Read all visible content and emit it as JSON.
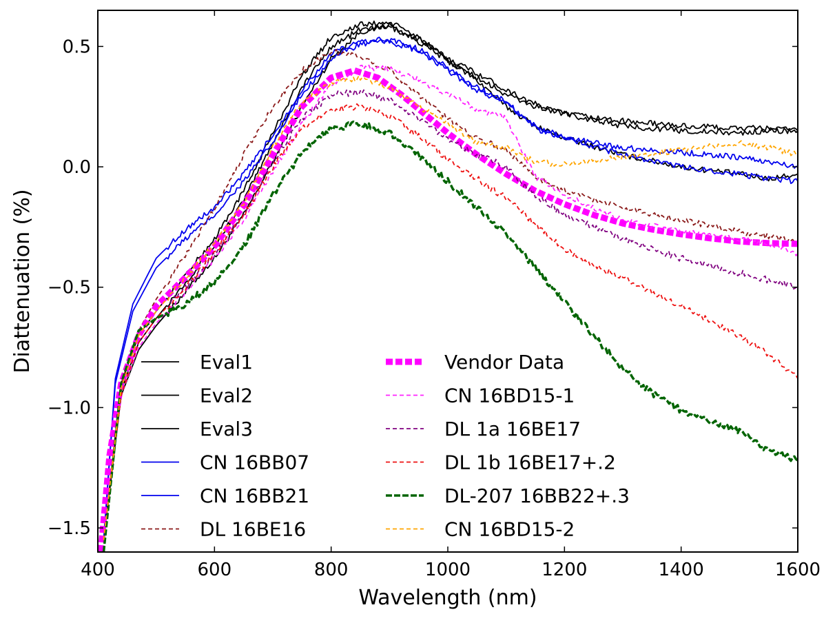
{
  "chart_data": {
    "type": "line",
    "title": "",
    "xlabel": "Wavelength (nm)",
    "ylabel": "Diattenuation (%)",
    "xlim": [
      400,
      1600
    ],
    "ylim": [
      -1.6,
      0.65
    ],
    "x_ticks": [
      400,
      600,
      800,
      1000,
      1200,
      1400,
      1600
    ],
    "x_tick_labels": [
      "400",
      "600",
      "800",
      "1000",
      "1200",
      "1400",
      "1600"
    ],
    "y_ticks": [
      -1.5,
      -1.0,
      -0.5,
      0.0,
      0.5
    ],
    "y_tick_labels": [
      "−1.5",
      "−1.0",
      "−0.5",
      "0.0",
      "0.5"
    ],
    "grid": false,
    "legend_position": "lower-center",
    "series": [
      {
        "name": "Eval1",
        "color": "#000000",
        "dash": "solid",
        "width": 1.8,
        "noise": 0.012,
        "x": [
          410,
          440,
          470,
          500,
          550,
          600,
          650,
          700,
          750,
          800,
          850,
          900,
          950,
          1000,
          1050,
          1100,
          1150,
          1200,
          1300,
          1400,
          1500,
          1550,
          1600
        ],
        "y": [
          -1.55,
          -0.95,
          -0.76,
          -0.66,
          -0.52,
          -0.38,
          -0.2,
          0.02,
          0.25,
          0.45,
          0.56,
          0.59,
          0.52,
          0.44,
          0.36,
          0.25,
          0.17,
          0.12,
          0.05,
          0.0,
          -0.03,
          -0.05,
          -0.03
        ]
      },
      {
        "name": "Eval2",
        "color": "#000000",
        "dash": "solid",
        "width": 1.8,
        "noise": 0.012,
        "x": [
          410,
          440,
          470,
          500,
          550,
          600,
          650,
          700,
          750,
          800,
          850,
          900,
          950,
          1000,
          1050,
          1100,
          1150,
          1200,
          1300,
          1400,
          1500,
          1550,
          1600
        ],
        "y": [
          -1.55,
          -0.93,
          -0.73,
          -0.63,
          -0.48,
          -0.33,
          -0.14,
          0.1,
          0.33,
          0.5,
          0.57,
          0.58,
          0.53,
          0.45,
          0.39,
          0.32,
          0.26,
          0.22,
          0.17,
          0.15,
          0.14,
          0.15,
          0.15
        ]
      },
      {
        "name": "Eval3",
        "color": "#000000",
        "dash": "solid",
        "width": 1.8,
        "noise": 0.012,
        "x": [
          410,
          440,
          470,
          500,
          550,
          600,
          650,
          700,
          750,
          800,
          850,
          900,
          950,
          1000,
          1050,
          1100,
          1150,
          1200,
          1300,
          1400,
          1500,
          1550,
          1600
        ],
        "y": [
          -1.55,
          -0.9,
          -0.7,
          -0.6,
          -0.45,
          -0.3,
          -0.1,
          0.14,
          0.38,
          0.54,
          0.59,
          0.6,
          0.54,
          0.44,
          0.37,
          0.3,
          0.25,
          0.22,
          0.19,
          0.17,
          0.16,
          0.16,
          0.15
        ]
      },
      {
        "name": "CN 16BB07",
        "color": "#0000ee",
        "dash": "solid",
        "width": 1.8,
        "noise": 0.012,
        "x": [
          410,
          430,
          460,
          500,
          550,
          600,
          650,
          700,
          750,
          800,
          850,
          900,
          950,
          1000,
          1050,
          1100,
          1150,
          1200,
          1300,
          1400,
          1500,
          1550,
          1600
        ],
        "y": [
          -1.55,
          -0.9,
          -0.6,
          -0.42,
          -0.3,
          -0.2,
          -0.06,
          0.1,
          0.3,
          0.45,
          0.51,
          0.52,
          0.48,
          0.4,
          0.32,
          0.26,
          0.17,
          0.12,
          0.08,
          0.06,
          0.04,
          0.02,
          0.0
        ]
      },
      {
        "name": "CN 16BB21",
        "color": "#0000ee",
        "dash": "solid",
        "width": 1.8,
        "noise": 0.012,
        "x": [
          410,
          430,
          460,
          500,
          550,
          600,
          650,
          700,
          750,
          800,
          850,
          900,
          950,
          1000,
          1050,
          1100,
          1150,
          1200,
          1300,
          1400,
          1500,
          1550,
          1600
        ],
        "y": [
          -1.55,
          -0.88,
          -0.57,
          -0.38,
          -0.26,
          -0.17,
          -0.03,
          0.13,
          0.32,
          0.47,
          0.52,
          0.53,
          0.49,
          0.41,
          0.33,
          0.27,
          0.16,
          0.12,
          0.05,
          0.0,
          -0.03,
          -0.05,
          -0.06
        ]
      },
      {
        "name": "DL 16BE16",
        "color": "#8b1a1a",
        "dash": "6,4",
        "width": 1.8,
        "noise": 0.012,
        "x": [
          410,
          440,
          470,
          500,
          550,
          600,
          650,
          700,
          750,
          800,
          850,
          900,
          950,
          1000,
          1050,
          1100,
          1150,
          1200,
          1300,
          1400,
          1500,
          1550,
          1600
        ],
        "y": [
          -1.55,
          -0.9,
          -0.68,
          -0.55,
          -0.37,
          -0.17,
          0.05,
          0.25,
          0.4,
          0.48,
          0.46,
          0.4,
          0.3,
          0.2,
          0.12,
          0.07,
          -0.04,
          -0.1,
          -0.17,
          -0.22,
          -0.27,
          -0.29,
          -0.31
        ]
      },
      {
        "name": "Vendor Data",
        "color": "#ff00ff",
        "dash": "10,4",
        "width": 9,
        "noise": 0,
        "x": [
          405,
          420,
          440,
          470,
          500,
          550,
          600,
          650,
          700,
          750,
          800,
          840,
          880,
          920,
          960,
          1000,
          1050,
          1100,
          1150,
          1200,
          1250,
          1300,
          1350,
          1400,
          1450,
          1500,
          1550,
          1600
        ],
        "y": [
          -1.6,
          -1.2,
          -0.9,
          -0.7,
          -0.58,
          -0.46,
          -0.33,
          -0.16,
          0.05,
          0.25,
          0.37,
          0.4,
          0.37,
          0.3,
          0.22,
          0.14,
          0.05,
          -0.03,
          -0.1,
          -0.155,
          -0.2,
          -0.235,
          -0.26,
          -0.28,
          -0.297,
          -0.31,
          -0.317,
          -0.32
        ]
      },
      {
        "name": "CN 16BD15-1",
        "color": "#ff22ff",
        "dash": "6,4",
        "width": 1.8,
        "noise": 0.012,
        "x": [
          410,
          440,
          470,
          500,
          550,
          600,
          650,
          700,
          750,
          800,
          850,
          900,
          950,
          1000,
          1050,
          1100,
          1150,
          1200,
          1300,
          1400,
          1500,
          1550,
          1600
        ],
        "y": [
          -1.55,
          -0.95,
          -0.75,
          -0.65,
          -0.52,
          -0.38,
          -0.22,
          -0.02,
          0.18,
          0.34,
          0.41,
          0.41,
          0.36,
          0.3,
          0.24,
          0.2,
          -0.04,
          -0.12,
          -0.22,
          -0.27,
          -0.3,
          -0.32,
          -0.36
        ]
      },
      {
        "name": "DL 1a 16BE17",
        "color": "#800080",
        "dash": "6,4",
        "width": 1.8,
        "noise": 0.014,
        "x": [
          410,
          440,
          470,
          500,
          550,
          600,
          650,
          700,
          750,
          800,
          850,
          900,
          950,
          1000,
          1050,
          1100,
          1150,
          1200,
          1300,
          1400,
          1500,
          1550,
          1600
        ],
        "y": [
          -1.55,
          -0.95,
          -0.73,
          -0.63,
          -0.5,
          -0.36,
          -0.2,
          0.02,
          0.2,
          0.3,
          0.31,
          0.28,
          0.2,
          0.12,
          0.05,
          0.0,
          -0.12,
          -0.2,
          -0.3,
          -0.38,
          -0.44,
          -0.47,
          -0.5
        ]
      },
      {
        "name": "DL 1b 16BE17+.2",
        "color": "#ee1111",
        "dash": "6,4",
        "width": 1.8,
        "noise": 0.014,
        "x": [
          410,
          440,
          470,
          500,
          550,
          600,
          650,
          700,
          750,
          800,
          850,
          900,
          950,
          1000,
          1050,
          1100,
          1150,
          1200,
          1250,
          1300,
          1350,
          1400,
          1450,
          1500,
          1550,
          1600
        ],
        "y": [
          -1.55,
          -0.95,
          -0.73,
          -0.63,
          -0.5,
          -0.36,
          -0.2,
          0.0,
          0.16,
          0.24,
          0.25,
          0.21,
          0.13,
          0.03,
          -0.05,
          -0.13,
          -0.24,
          -0.34,
          -0.41,
          -0.46,
          -0.52,
          -0.58,
          -0.64,
          -0.7,
          -0.78,
          -0.88
        ]
      },
      {
        "name": "DL-207 16BB22+.3",
        "color": "#006400",
        "dash": "9,3",
        "width": 3.5,
        "noise": 0.014,
        "x": [
          410,
          440,
          470,
          500,
          550,
          600,
          650,
          700,
          750,
          800,
          850,
          900,
          950,
          1000,
          1050,
          1100,
          1150,
          1200,
          1250,
          1300,
          1350,
          1400,
          1450,
          1500,
          1550,
          1600
        ],
        "y": [
          -1.6,
          -0.9,
          -0.68,
          -0.63,
          -0.57,
          -0.48,
          -0.33,
          -0.12,
          0.06,
          0.16,
          0.18,
          0.14,
          0.05,
          -0.06,
          -0.17,
          -0.28,
          -0.42,
          -0.56,
          -0.7,
          -0.84,
          -0.94,
          -1.01,
          -1.06,
          -1.1,
          -1.18,
          -1.22
        ]
      },
      {
        "name": "CN 16BD15-2",
        "color": "#ffa500",
        "dash": "6,4",
        "width": 1.8,
        "noise": 0.012,
        "x": [
          410,
          440,
          470,
          500,
          550,
          600,
          650,
          700,
          750,
          800,
          850,
          900,
          950,
          1000,
          1050,
          1100,
          1150,
          1200,
          1300,
          1400,
          1500,
          1550,
          1600
        ],
        "y": [
          -1.55,
          -0.92,
          -0.7,
          -0.6,
          -0.46,
          -0.32,
          -0.15,
          0.08,
          0.27,
          0.35,
          0.37,
          0.33,
          0.25,
          0.18,
          0.1,
          0.08,
          0.02,
          0.01,
          0.04,
          0.07,
          0.1,
          0.08,
          0.05
        ]
      }
    ]
  }
}
